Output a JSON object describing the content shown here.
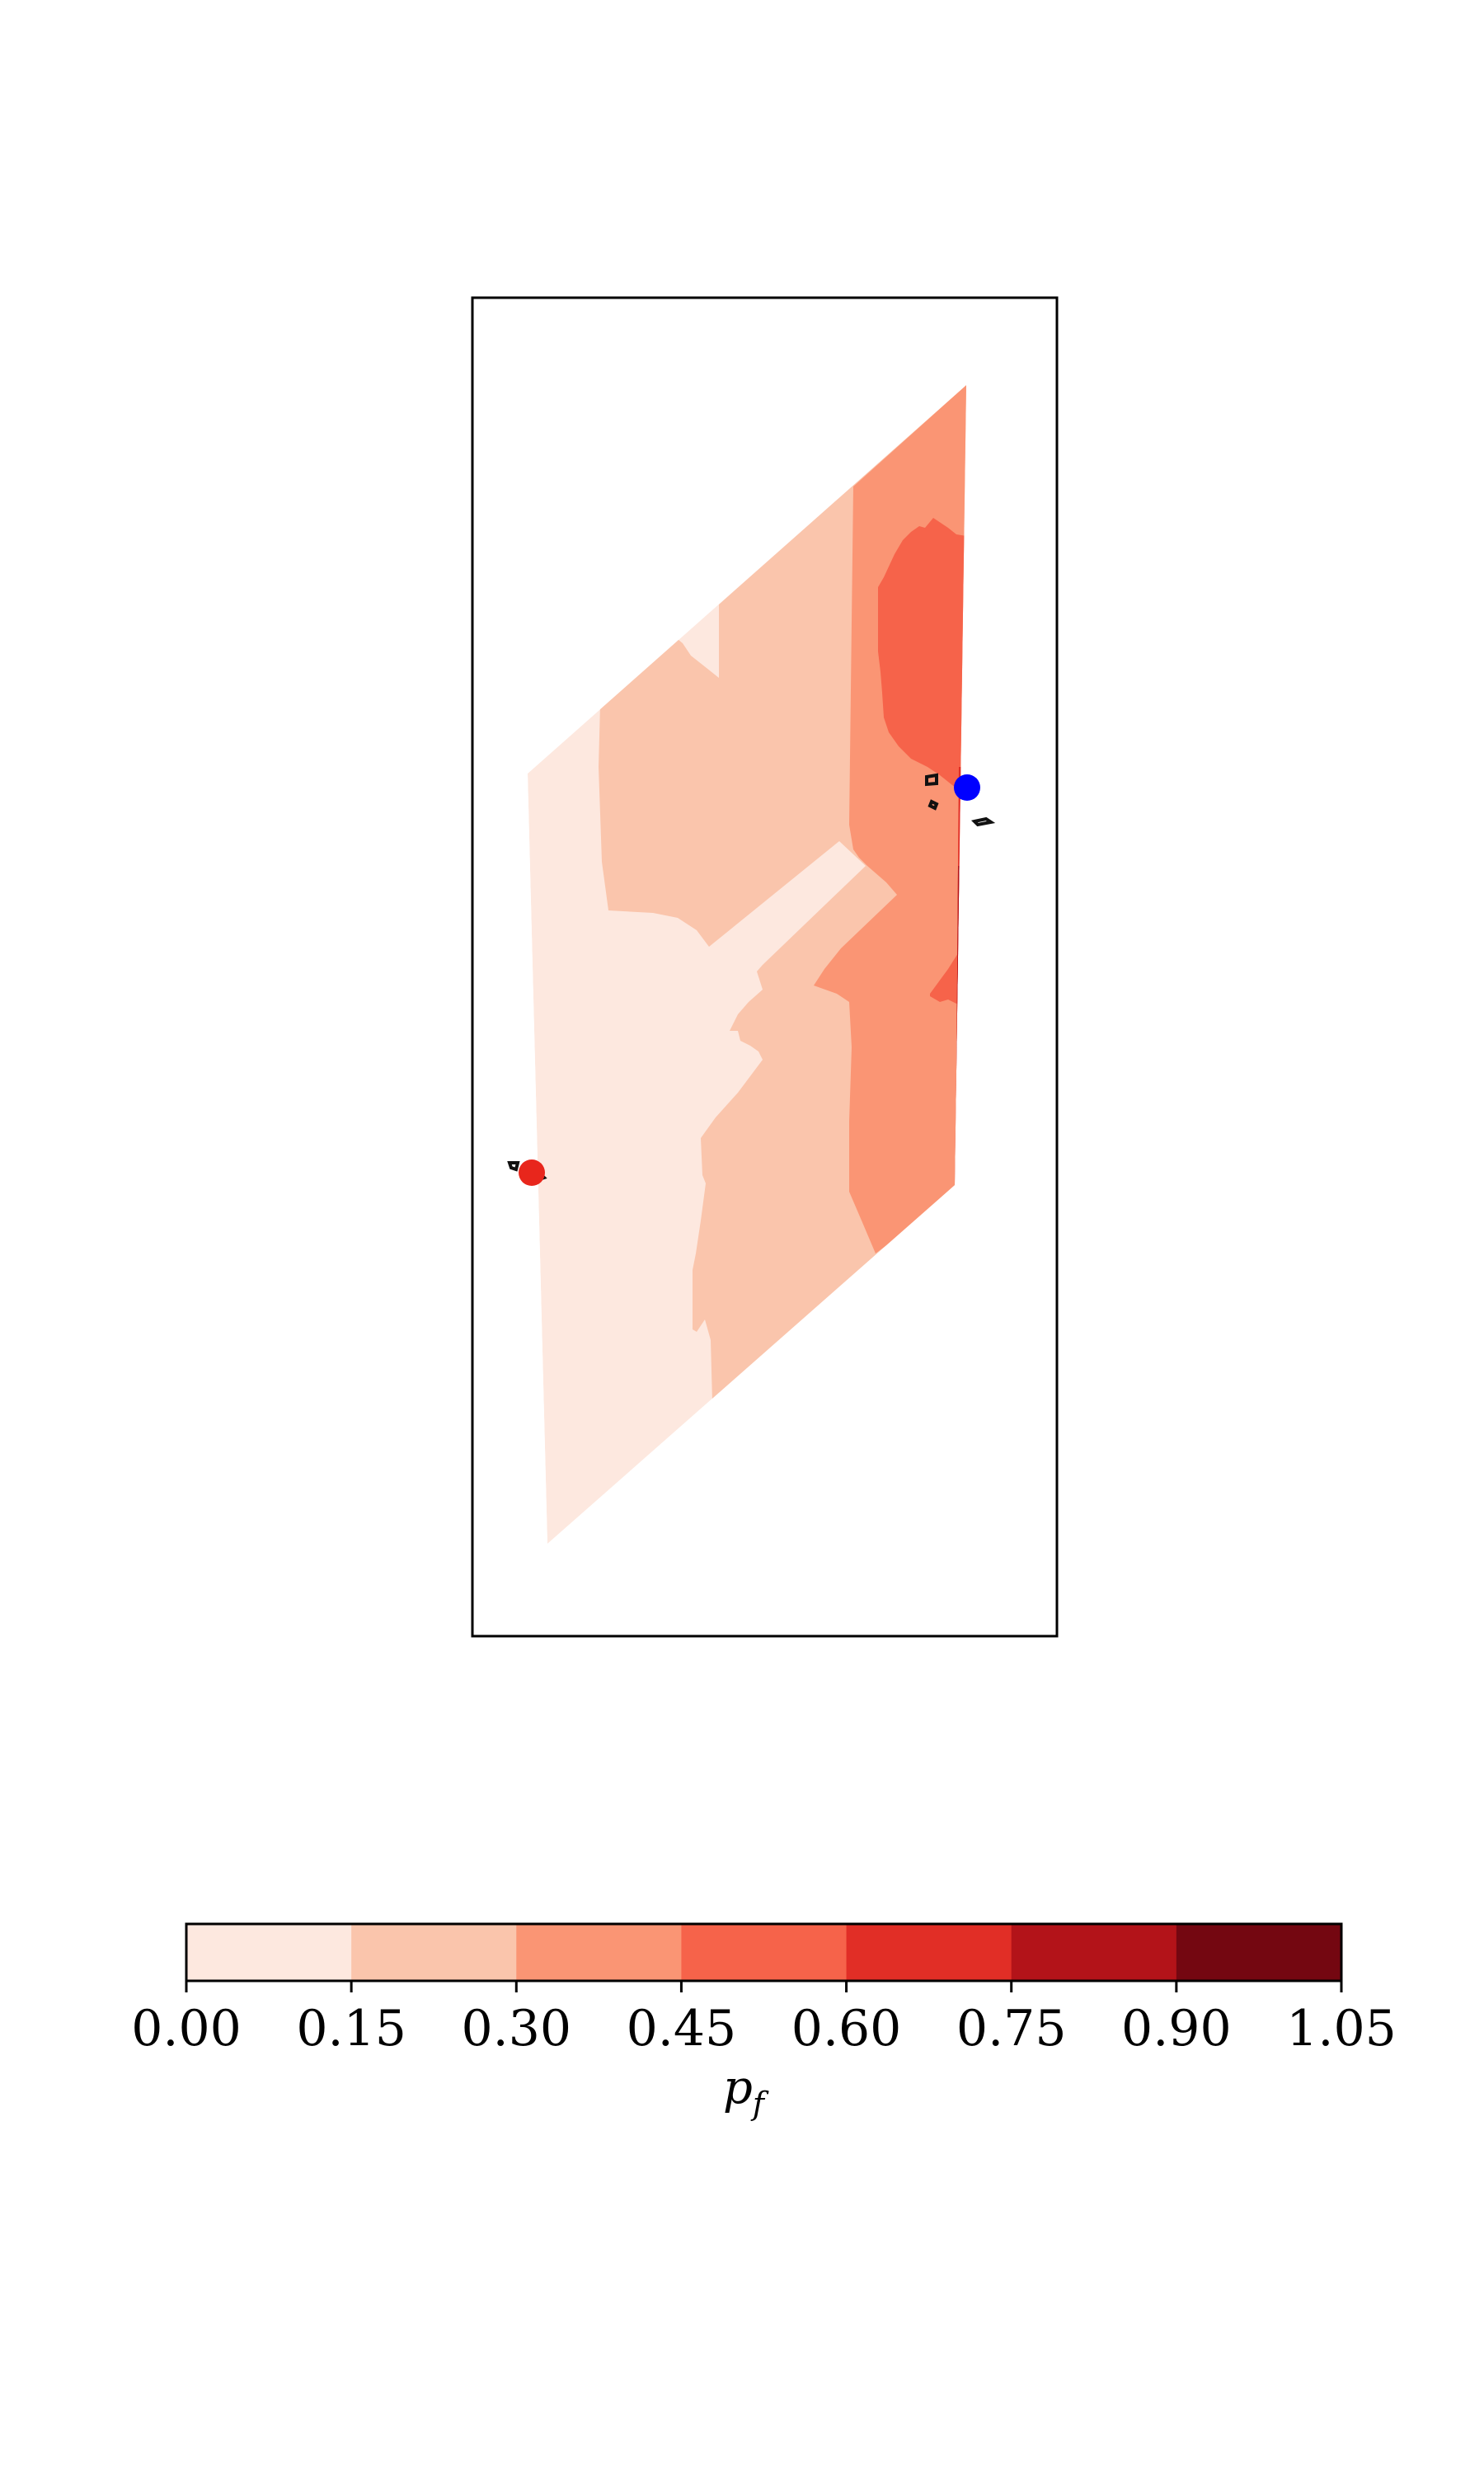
{
  "chart_data": {
    "type": "heatmap",
    "title": "",
    "xlabel": "",
    "ylabel": "",
    "colorbar": {
      "label": "p",
      "label_subscript": "f",
      "ticks": [
        "0.00",
        "0.15",
        "0.30",
        "0.45",
        "0.60",
        "0.75",
        "0.90",
        "1.05"
      ],
      "levels": [
        0.0,
        0.15,
        0.3,
        0.45,
        0.6,
        0.75,
        0.9,
        1.05
      ],
      "colors": [
        "#fde8df",
        "#fac5ac",
        "#fa9574",
        "#f6634a",
        "#e12e26",
        "#b31319",
        "#740711"
      ],
      "orientation": "horizontal",
      "placement": "bottom"
    },
    "regions": [
      {
        "level_range": [
          0.0,
          0.15
        ],
        "area": "left and lower-left part of the domain"
      },
      {
        "level_range": [
          0.15,
          0.3
        ],
        "area": "central band"
      },
      {
        "level_range": [
          0.3,
          0.45
        ],
        "area": "right band"
      },
      {
        "level_range": [
          0.45,
          0.6
        ],
        "area": "upper-right core and small patch near right edge"
      },
      {
        "level_range": [
          0.6,
          1.05
        ],
        "area": "thin strip along right edge"
      }
    ],
    "markers": [
      {
        "name": "source",
        "color": "#0000ff",
        "location": "right edge, upper middle"
      },
      {
        "name": "target",
        "color": "#e8261c",
        "location": "left edge, lower middle"
      }
    ],
    "axes_visible": false,
    "grid": false
  }
}
